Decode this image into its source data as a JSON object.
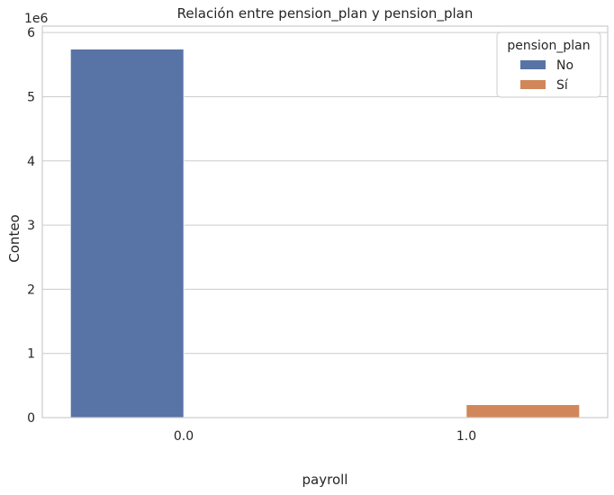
{
  "chart_data": {
    "type": "bar",
    "title": "Relación entre pension_plan y pension_plan",
    "xlabel": "payroll",
    "ylabel": "Conteo",
    "y_offset_label": "1e6",
    "categories": [
      "0.0",
      "1.0"
    ],
    "y_ticks": [
      "0",
      "1",
      "2",
      "3",
      "4",
      "5",
      "6"
    ],
    "ylim": [
      0,
      6.1
    ],
    "grid": "horizontal",
    "legend": {
      "title": "pension_plan",
      "placement": "top-right"
    },
    "series": [
      {
        "name": "No",
        "color": "#5873a6",
        "values": [
          5.74,
          0
        ]
      },
      {
        "name": "Sí",
        "color": "#d1875a",
        "values": [
          0,
          0.2
        ]
      }
    ]
  }
}
